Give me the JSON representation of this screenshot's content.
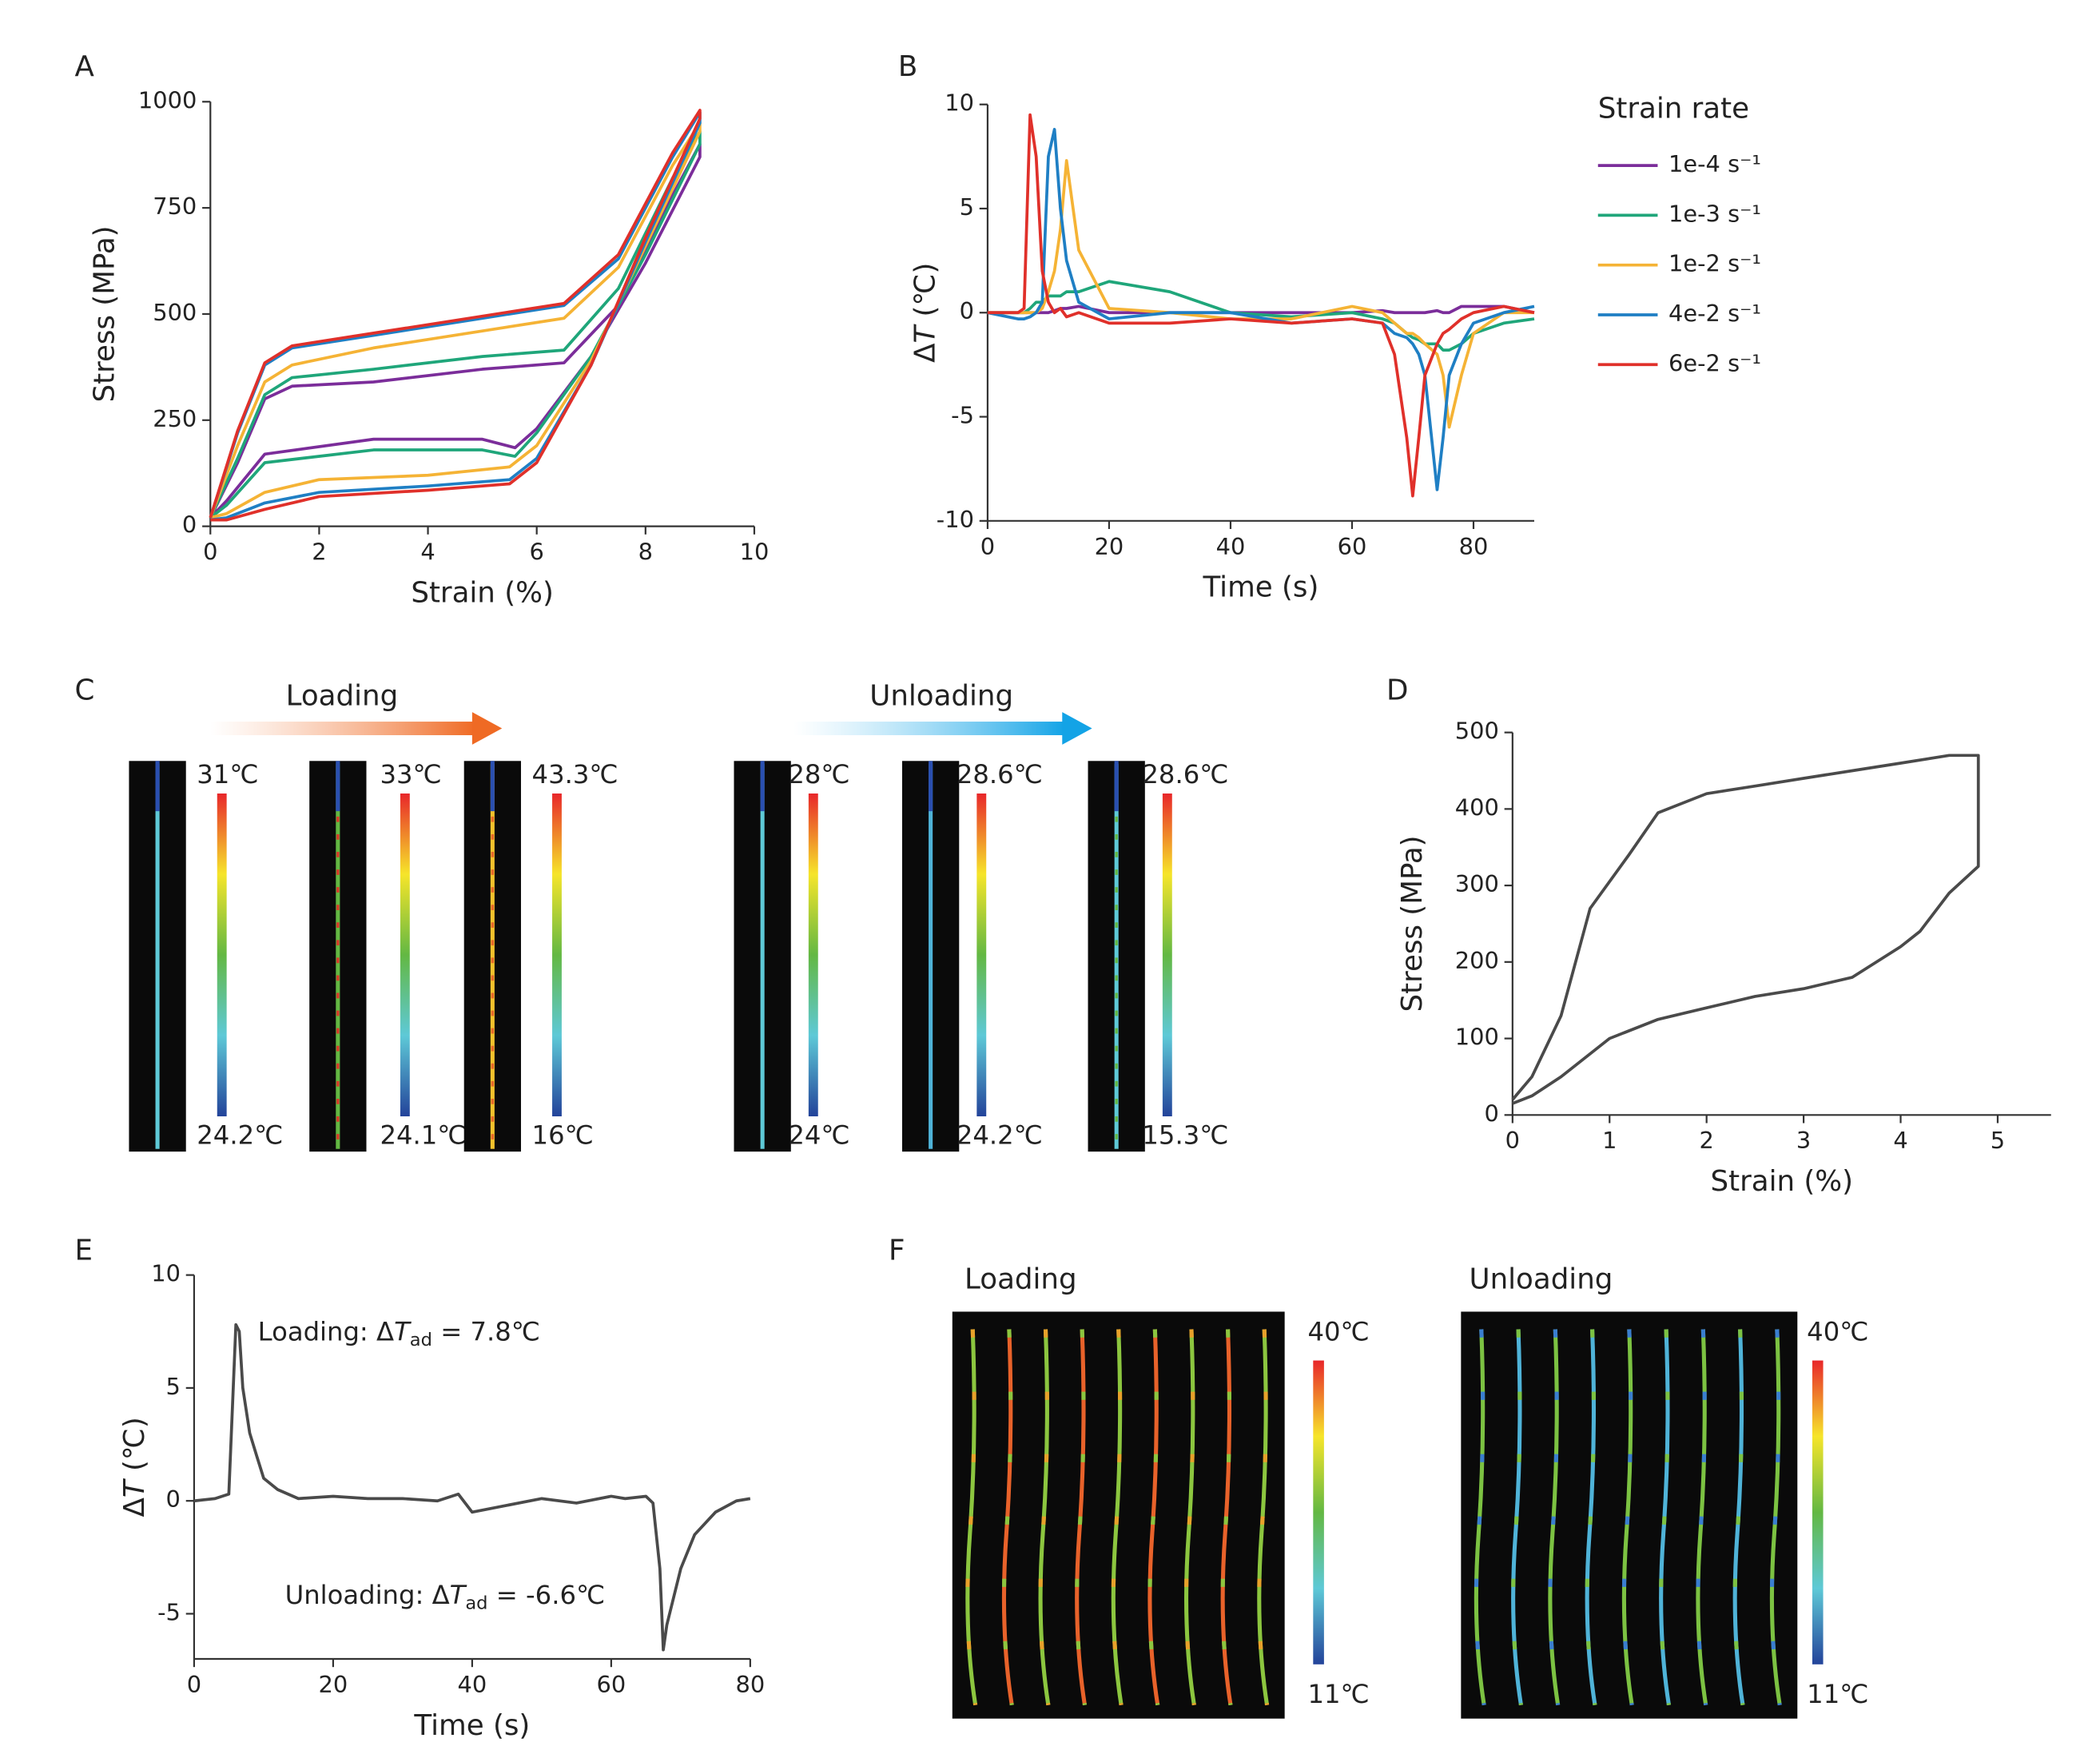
{
  "chart_data": [
    {
      "type": "line",
      "panel_label": "A",
      "xlabel": "Strain (%)",
      "ylabel": "Stress (MPa)",
      "xlim": [
        0,
        10
      ],
      "xticks": [
        0,
        2,
        4,
        6,
        8,
        10
      ],
      "ylim": [
        0,
        1000
      ],
      "yticks": [
        0,
        250,
        500,
        750,
        1000
      ],
      "series": [
        {
          "name": "1e-4 s⁻¹",
          "color": "#7b2d9a",
          "x": [
            0,
            0.5,
            1,
            1.5,
            3,
            5,
            6.5,
            7.5,
            8.5,
            9,
            9,
            8,
            7,
            6,
            5.6,
            5,
            3,
            1,
            0.3,
            0
          ],
          "values": [
            20,
            150,
            300,
            330,
            340,
            370,
            385,
            520,
            780,
            900,
            870,
            620,
            400,
            230,
            185,
            205,
            205,
            170,
            60,
            20
          ]
        },
        {
          "name": "1e-3 s⁻¹",
          "color": "#1fa67a",
          "x": [
            0,
            0.5,
            1,
            1.5,
            3,
            5,
            6.5,
            7.5,
            8.5,
            9,
            9,
            8,
            7,
            6,
            5.6,
            5,
            3,
            1,
            0.3,
            0
          ],
          "values": [
            20,
            160,
            310,
            350,
            370,
            400,
            415,
            560,
            820,
            930,
            900,
            640,
            400,
            220,
            165,
            180,
            180,
            150,
            50,
            20
          ]
        },
        {
          "name": "1e-2 s⁻¹",
          "color": "#f5b335",
          "x": [
            0,
            0.5,
            1,
            1.5,
            3,
            5,
            6.5,
            7.5,
            8.5,
            9,
            9,
            8,
            7,
            6,
            5.5,
            4,
            2,
            1,
            0.3,
            0
          ],
          "values": [
            20,
            190,
            340,
            380,
            420,
            460,
            490,
            610,
            850,
            950,
            930,
            660,
            390,
            190,
            140,
            120,
            110,
            80,
            30,
            20
          ]
        },
        {
          "name": "4e-2 s⁻¹",
          "color": "#1f7fc4",
          "x": [
            0,
            0.5,
            1,
            1.5,
            3,
            5,
            6.5,
            7.5,
            8.5,
            9,
            9,
            8,
            7,
            6,
            5.5,
            4,
            2,
            1,
            0.3,
            0
          ],
          "values": [
            20,
            220,
            380,
            420,
            450,
            490,
            520,
            630,
            870,
            975,
            950,
            670,
            380,
            160,
            110,
            95,
            80,
            55,
            20,
            15
          ]
        },
        {
          "name": "6e-2 s⁻¹",
          "color": "#e0302a",
          "x": [
            0,
            0.5,
            1,
            1.5,
            3,
            5,
            6.5,
            7.5,
            8.5,
            9,
            9,
            8,
            7,
            6,
            5.5,
            4,
            2,
            1,
            0.3,
            0
          ],
          "values": [
            20,
            225,
            385,
            425,
            455,
            495,
            525,
            640,
            880,
            980,
            960,
            680,
            380,
            150,
            100,
            85,
            70,
            40,
            15,
            15
          ]
        }
      ]
    },
    {
      "type": "line",
      "panel_label": "B",
      "xlabel": "Time (s)",
      "ylabel": {
        "prefix": "Δ",
        "var": "T",
        "suffix": " (℃)"
      },
      "legend": "right",
      "legend_title": "Strain rate",
      "xlim": [
        0,
        90
      ],
      "xticks": [
        0,
        20,
        40,
        60,
        80
      ],
      "ylim": [
        -10,
        10
      ],
      "yticks": [
        -10,
        -5,
        0,
        5,
        10
      ],
      "series": [
        {
          "name": "1e-4 s⁻¹",
          "color": "#7b2d9a",
          "x": [
            0,
            5,
            6,
            7,
            8,
            9,
            10,
            11,
            12,
            13,
            15,
            20,
            30,
            40,
            50,
            60,
            65,
            67,
            69,
            70,
            71,
            72,
            74,
            75,
            76,
            78,
            80,
            85,
            90
          ],
          "values": [
            0,
            0,
            0,
            0,
            0,
            0,
            0,
            0.1,
            0.2,
            0.2,
            0.3,
            0,
            0,
            0,
            0,
            0,
            0.1,
            0,
            0,
            0,
            0,
            0,
            0.1,
            0,
            0,
            0.3,
            0.3,
            0.3,
            0
          ]
        },
        {
          "name": "1e-3 s⁻¹",
          "color": "#1fa67a",
          "x": [
            0,
            5,
            6,
            7,
            8,
            9,
            10,
            11,
            12,
            13,
            15,
            20,
            30,
            40,
            50,
            60,
            65,
            67,
            69,
            70,
            71,
            72,
            74,
            75,
            76,
            78,
            80,
            85,
            90
          ],
          "values": [
            0,
            0,
            0,
            0.2,
            0.5,
            0.5,
            0.8,
            0.8,
            0.8,
            1,
            1,
            1.5,
            1,
            0,
            -0.2,
            0,
            -0.3,
            -0.5,
            -1,
            -1.2,
            -1.3,
            -1.5,
            -1.5,
            -1.8,
            -1.8,
            -1.5,
            -1,
            -0.5,
            -0.3
          ]
        },
        {
          "name": "1e-2 s⁻¹",
          "color": "#f5b335",
          "x": [
            0,
            5,
            6,
            7,
            8,
            9,
            10,
            11,
            12,
            13,
            15,
            20,
            30,
            40,
            50,
            60,
            65,
            67,
            69,
            70,
            71,
            72,
            74,
            75,
            76,
            78,
            80,
            85,
            90
          ],
          "values": [
            0,
            0,
            0,
            0,
            0,
            0.2,
            1,
            2,
            4,
            7.3,
            3,
            0.2,
            0,
            -0.3,
            -0.3,
            0.3,
            0,
            -0.5,
            -1,
            -1,
            -1.2,
            -1.5,
            -2,
            -3,
            -5.5,
            -3,
            -1,
            0,
            0
          ]
        },
        {
          "name": "4e-2 s⁻¹",
          "color": "#1f7fc4",
          "x": [
            0,
            5,
            6,
            7,
            8,
            9,
            10,
            11,
            12,
            13,
            15,
            20,
            30,
            40,
            50,
            60,
            65,
            67,
            69,
            70,
            71,
            72,
            74,
            75,
            76,
            78,
            80,
            85,
            90
          ],
          "values": [
            0,
            -0.3,
            -0.3,
            -0.2,
            0,
            0.5,
            7.5,
            8.8,
            5,
            2.5,
            0.5,
            -0.3,
            0,
            0,
            -0.5,
            -0.3,
            -0.5,
            -1,
            -1.2,
            -1.5,
            -2,
            -3,
            -8.5,
            -6,
            -3,
            -1.5,
            -0.5,
            0,
            0.3
          ]
        },
        {
          "name": "6e-2 s⁻¹",
          "color": "#e0302a",
          "x": [
            0,
            5,
            6,
            7,
            8,
            9,
            10,
            11,
            12,
            13,
            15,
            20,
            30,
            40,
            50,
            60,
            65,
            67,
            69,
            70,
            71,
            72,
            74,
            75,
            76,
            78,
            80,
            85,
            90
          ],
          "values": [
            0,
            0,
            0.2,
            9.5,
            7.5,
            2,
            0.5,
            0,
            0.2,
            -0.2,
            0,
            -0.5,
            -0.5,
            -0.3,
            -0.5,
            -0.3,
            -0.5,
            -2,
            -6,
            -8.8,
            -6,
            -3,
            -1.5,
            -1,
            -0.8,
            -0.3,
            0,
            0.3,
            0
          ]
        }
      ]
    },
    {
      "type": "line",
      "panel_label": "D",
      "xlabel": "Strain (%)",
      "ylabel": "Stress (MPa)",
      "color": "#4a4a4a",
      "xlim": [
        0,
        5.55
      ],
      "xticks": [
        0,
        1,
        2,
        3,
        4,
        5
      ],
      "ylim": [
        0,
        500
      ],
      "yticks": [
        0,
        100,
        200,
        300,
        400,
        500
      ],
      "x": [
        0,
        0.2,
        0.5,
        0.8,
        1.2,
        1.5,
        2,
        2.5,
        3,
        3.5,
        4,
        4.5,
        4.8,
        4.8,
        4.5,
        4.2,
        4,
        3.5,
        3,
        2.5,
        2,
        1.5,
        1,
        0.5,
        0.2,
        0
      ],
      "values": [
        20,
        50,
        130,
        270,
        340,
        395,
        420,
        430,
        440,
        450,
        460,
        470,
        470,
        325,
        290,
        240,
        220,
        180,
        165,
        155,
        140,
        125,
        100,
        50,
        25,
        15
      ]
    },
    {
      "type": "line",
      "panel_label": "E",
      "xlabel": "Time (s)",
      "ylabel": {
        "prefix": "Δ",
        "var": "T",
        "suffix": " (℃)"
      },
      "color": "#4a4a4a",
      "xlim": [
        0,
        80
      ],
      "xticks": [
        0,
        20,
        40,
        60,
        80
      ],
      "ylim": [
        -7,
        10
      ],
      "yticks": [
        -5,
        0,
        5,
        10
      ],
      "x": [
        0,
        3,
        5,
        6,
        6.5,
        7,
        8,
        9,
        10,
        12,
        15,
        20,
        25,
        30,
        35,
        38,
        40,
        45,
        50,
        55,
        60,
        62,
        65,
        66,
        67,
        67.5,
        68,
        70,
        72,
        75,
        78,
        80
      ],
      "values": [
        0,
        0.1,
        0.3,
        7.8,
        7.5,
        5,
        3,
        2,
        1,
        0.5,
        0.1,
        0.2,
        0.1,
        0.1,
        0,
        0.3,
        -0.5,
        -0.2,
        0.1,
        -0.1,
        0.2,
        0.1,
        0.2,
        -0.1,
        -3,
        -6.6,
        -5.5,
        -3,
        -1.5,
        -0.5,
        0,
        0.1
      ],
      "annotations": [
        {
          "prefix": "Loading: Δ",
          "var": "T",
          "sub": "ad",
          "suffix": " = 7.8℃"
        },
        {
          "prefix": "Unloading: Δ",
          "var": "T",
          "sub": "ad",
          "suffix": " = -6.6℃"
        }
      ]
    }
  ],
  "thermal_c": {
    "panel_label": "C",
    "groups": [
      {
        "title": "Loading",
        "images": [
          {
            "max": "31℃",
            "min": "24.2℃"
          },
          {
            "max": "33℃",
            "min": "24.1℃"
          },
          {
            "max": "43.3℃",
            "min": "16℃"
          }
        ]
      },
      {
        "title": "Unloading",
        "images": [
          {
            "max": "28℃",
            "min": "24℃"
          },
          {
            "max": "28.6℃",
            "min": "24.2℃"
          },
          {
            "max": "28.6℃",
            "min": "15.3℃"
          }
        ]
      }
    ]
  },
  "thermal_f": {
    "panel_label": "F",
    "images": [
      {
        "title": "Loading",
        "max": "40℃",
        "min": "11℃"
      },
      {
        "title": "Unloading",
        "max": "40℃",
        "min": "11℃"
      }
    ]
  }
}
